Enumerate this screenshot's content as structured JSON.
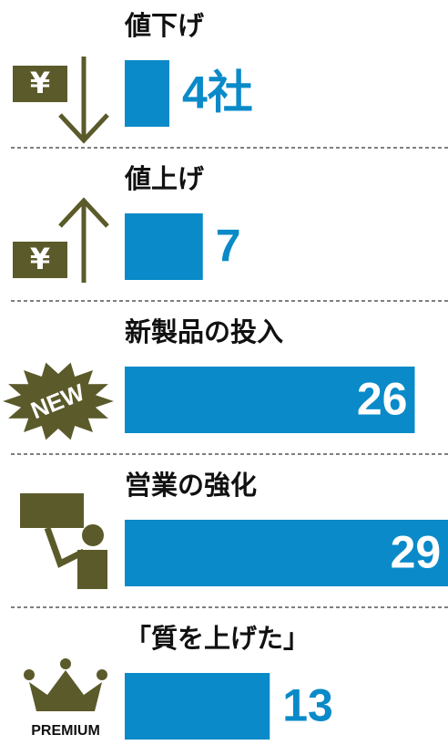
{
  "chart_data": {
    "type": "bar",
    "orientation": "horizontal",
    "categories": [
      "値下げ",
      "値上げ",
      "新製品の投入",
      "営業の強化",
      "「質を上げた」"
    ],
    "values": [
      4,
      7,
      26,
      29,
      13
    ],
    "value_labels": [
      "4社",
      "7",
      "26",
      "29",
      "13"
    ],
    "color": "#0a8ac8",
    "icons": {
      "yen": "¥",
      "new": "NEW",
      "premium": "PREMIUM"
    }
  }
}
